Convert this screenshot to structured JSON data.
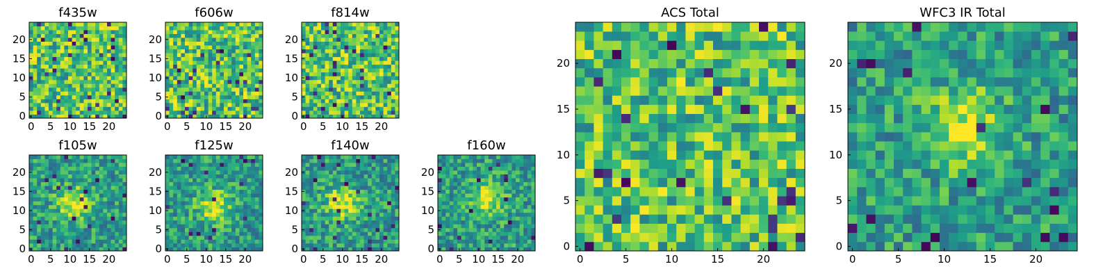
{
  "colormap": "viridis",
  "chart_data": [
    {
      "type": "heatmap",
      "title": "f435w",
      "xlim": [
        0,
        24
      ],
      "ylim": [
        0,
        24
      ],
      "xticks": [
        0,
        5,
        10,
        15,
        20
      ],
      "yticks": [
        0,
        5,
        10,
        15,
        20
      ],
      "pattern": "noise",
      "seed": 11
    },
    {
      "type": "heatmap",
      "title": "f606w",
      "xlim": [
        0,
        24
      ],
      "ylim": [
        0,
        24
      ],
      "xticks": [
        0,
        5,
        10,
        15,
        20
      ],
      "yticks": [
        0,
        5,
        10,
        15,
        20
      ],
      "pattern": "noise",
      "seed": 23
    },
    {
      "type": "heatmap",
      "title": "f814w",
      "xlim": [
        0,
        24
      ],
      "ylim": [
        0,
        24
      ],
      "xticks": [
        0,
        5,
        10,
        15,
        20
      ],
      "yticks": [
        0,
        5,
        10,
        15,
        20
      ],
      "pattern": "noise",
      "seed": 37
    },
    {
      "type": "heatmap",
      "title": "f105w",
      "xlim": [
        0,
        24
      ],
      "ylim": [
        0,
        24
      ],
      "xticks": [
        0,
        5,
        10,
        15,
        20
      ],
      "yticks": [
        0,
        5,
        10,
        15,
        20
      ],
      "pattern": "source",
      "source_center": [
        11,
        12
      ],
      "seed": 41
    },
    {
      "type": "heatmap",
      "title": "f125w",
      "xlim": [
        0,
        24
      ],
      "ylim": [
        0,
        24
      ],
      "xticks": [
        0,
        5,
        10,
        15,
        20
      ],
      "yticks": [
        0,
        5,
        10,
        15,
        20
      ],
      "pattern": "source",
      "source_center": [
        12,
        11
      ],
      "seed": 53
    },
    {
      "type": "heatmap",
      "title": "f140w",
      "xlim": [
        0,
        24
      ],
      "ylim": [
        0,
        24
      ],
      "xticks": [
        0,
        5,
        10,
        15,
        20
      ],
      "yticks": [
        0,
        5,
        10,
        15,
        20
      ],
      "pattern": "source",
      "source_center": [
        10,
        12
      ],
      "seed": 67
    },
    {
      "type": "heatmap",
      "title": "f160w",
      "xlim": [
        0,
        24
      ],
      "ylim": [
        0,
        24
      ],
      "xticks": [
        0,
        5,
        10,
        15,
        20
      ],
      "yticks": [
        0,
        5,
        10,
        15,
        20
      ],
      "pattern": "source",
      "source_center": [
        12,
        13
      ],
      "seed": 79
    },
    {
      "type": "heatmap",
      "title": "ACS Total",
      "xlim": [
        0,
        24
      ],
      "ylim": [
        0,
        24
      ],
      "xticks": [
        0,
        5,
        10,
        15,
        20
      ],
      "yticks": [
        0,
        5,
        10,
        15,
        20
      ],
      "pattern": "noise",
      "seed": 97
    },
    {
      "type": "heatmap",
      "title": "WFC3 IR Total",
      "xlim": [
        0,
        24
      ],
      "ylim": [
        0,
        24
      ],
      "xticks": [
        0,
        5,
        10,
        15,
        20
      ],
      "yticks": [
        0,
        5,
        10,
        15,
        20
      ],
      "pattern": "source",
      "source_center": [
        12,
        13
      ],
      "seed": 113
    }
  ]
}
